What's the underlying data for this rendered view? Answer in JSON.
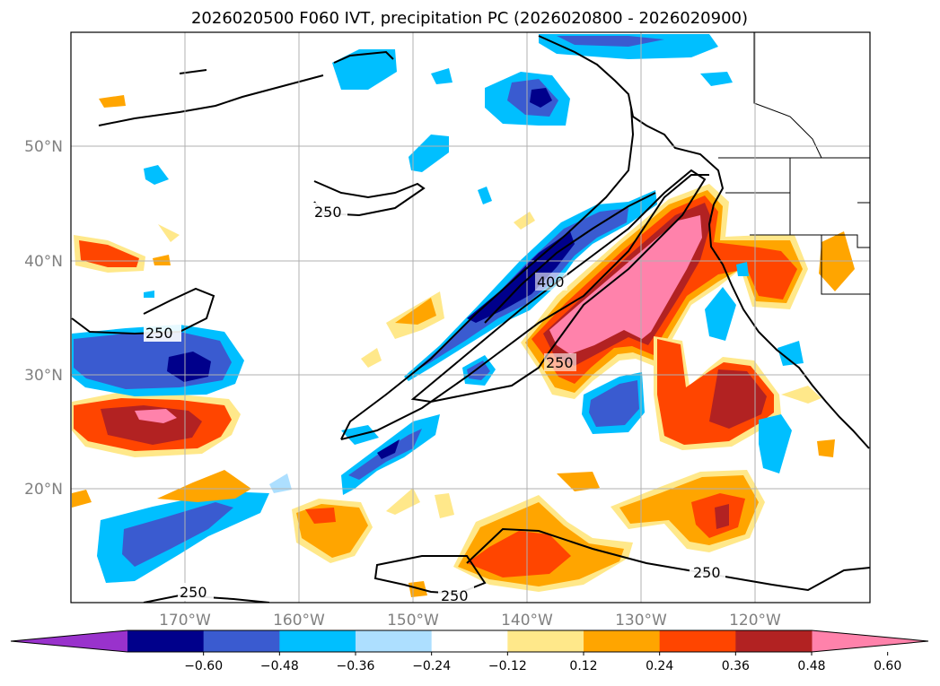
{
  "chart_data": {
    "type": "contour_map",
    "title": "2026020500 F060 IVT, precipitation PC (2026020800 - 2026020900)",
    "domain": {
      "lon": [
        -180,
        -110
      ],
      "lat": [
        10,
        60
      ]
    },
    "x_ticks": [
      "170°W",
      "160°W",
      "150°W",
      "140°W",
      "130°W",
      "120°W"
    ],
    "y_ticks": [
      "20°N",
      "30°N",
      "40°N",
      "50°N"
    ],
    "colorbar": {
      "levels": [
        -0.6,
        -0.48,
        -0.36,
        -0.24,
        -0.12,
        0.12,
        0.24,
        0.36,
        0.48,
        0.6
      ],
      "tick_labels": [
        "−0.60",
        "−0.48",
        "−0.36",
        "−0.24",
        "−0.12",
        "0.12",
        "0.24",
        "0.36",
        "0.48",
        "0.60"
      ],
      "colors": [
        "#9932CC",
        "#00008B",
        "#3A5BD0",
        "#00BFFF",
        "#ADDFFF",
        "#FFFFFF",
        "#FFE88A",
        "#FFA500",
        "#FF4500",
        "#B22222",
        "#FF82AB"
      ],
      "extend": "both"
    },
    "ivt_contours": {
      "levels": [
        250,
        400
      ],
      "labels": [
        "250",
        "250",
        "250",
        "250",
        "250",
        "250",
        "400"
      ]
    }
  }
}
